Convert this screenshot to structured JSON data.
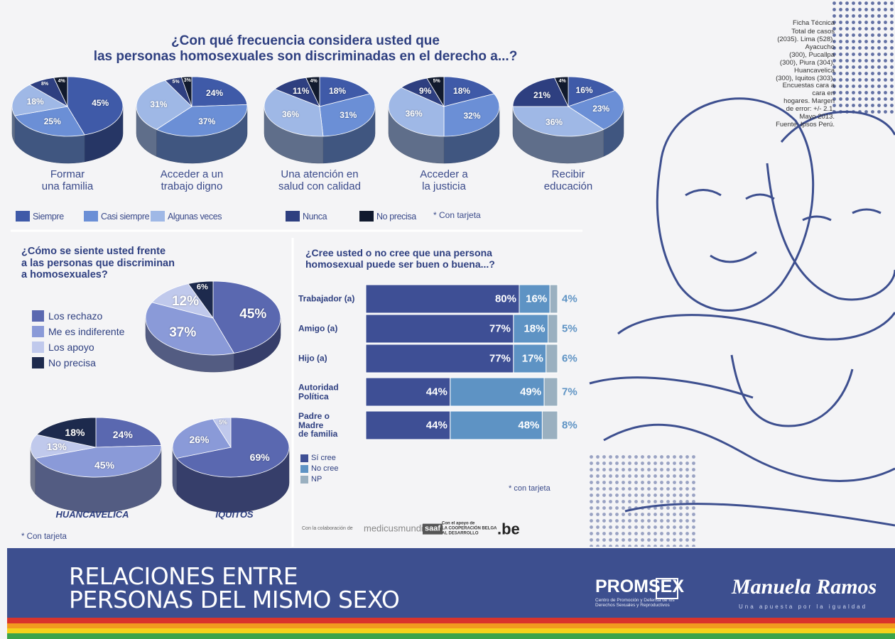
{
  "chart_data": [
    {
      "type": "pie",
      "title": "¿Con qué frecuencia considera usted que\nlas personas homosexuales son discriminadas en el derecho a...?",
      "categories": [
        "Siempre",
        "Casi siempre",
        "Algunas veces",
        "Nunca",
        "No precisa"
      ],
      "colors": [
        "#3f5aa8",
        "#6b8fd6",
        "#9fb8e6",
        "#2e3f80",
        "#111a2e"
      ],
      "pies": [
        {
          "label": "Formar\nuna familia",
          "values": [
            45,
            25,
            18,
            8,
            4
          ],
          "value_labels": [
            "45%",
            "25%",
            "18%",
            "8%",
            "4%"
          ]
        },
        {
          "label": "Acceder a un\ntrabajo digno",
          "values": [
            24,
            37,
            31,
            5,
            3
          ],
          "value_labels": [
            "24%",
            "37%",
            "31%",
            "5%",
            "3%"
          ]
        },
        {
          "label": "Una atención en\nsalud con calidad",
          "values": [
            18,
            31,
            36,
            11,
            4
          ],
          "value_labels": [
            "18%",
            "31%",
            "36%",
            "11%",
            "4%"
          ]
        },
        {
          "label": "Acceder a\nla justicia",
          "values": [
            18,
            32,
            36,
            9,
            5
          ],
          "value_labels": [
            "18%",
            "32%",
            "36%",
            "9%",
            "5%"
          ]
        },
        {
          "label": "Recibir\neducación",
          "values": [
            16,
            23,
            36,
            21,
            4
          ],
          "value_labels": [
            "16%",
            "23%",
            "36%",
            "21%",
            "4%"
          ]
        }
      ],
      "note": "* Con tarjeta"
    },
    {
      "type": "pie",
      "title": "¿Cómo se siente usted frente\na las personas que discriminan\na homosexuales?",
      "categories": [
        "Los rechazo",
        "Me es indiferente",
        "Los apoyo",
        "No precisa"
      ],
      "colors": [
        "#5a68b0",
        "#8a9ad8",
        "#c0c9ec",
        "#1d2a4d"
      ],
      "pies": [
        {
          "values": [
            45,
            37,
            12,
            6
          ],
          "value_labels": [
            "45%",
            "37%",
            "12%",
            "6%"
          ]
        },
        {
          "label": "HUANCAVELICA",
          "values": [
            24,
            45,
            13,
            18
          ],
          "value_labels": [
            "24%",
            "45%",
            "13%",
            "18%"
          ]
        },
        {
          "label": "IQUITOS",
          "values": [
            69,
            26,
            5,
            null
          ],
          "value_labels": [
            "69%",
            "26%",
            "5%",
            null
          ]
        }
      ],
      "note": "* Con tarjeta"
    },
    {
      "type": "bar",
      "orientation": "horizontal",
      "stacked": true,
      "title": "¿Cree usted o no cree que una persona\nhomosexual puede ser buen o buena...?",
      "categories": [
        "Trabajador (a)",
        "Amigo (a)",
        "Hijo (a)",
        "Autoridad\nPolítica",
        "Padre o\nMadre\nde familia"
      ],
      "series": [
        {
          "name": "Sí cree",
          "color": "#3e4f95",
          "values": [
            80,
            77,
            77,
            44,
            44
          ],
          "value_labels": [
            "80%",
            "77%",
            "77%",
            "44%",
            "44%"
          ]
        },
        {
          "name": "No cree",
          "color": "#5e93c4",
          "values": [
            16,
            18,
            17,
            49,
            48
          ],
          "value_labels": [
            "16%",
            "18%",
            "17%",
            "49%",
            "48%"
          ]
        },
        {
          "name": "NP",
          "color": "#9ab0c0",
          "values": [
            4,
            5,
            6,
            7,
            8
          ],
          "value_labels": [
            "4%",
            "5%",
            "6%",
            "7%",
            "8%"
          ]
        }
      ],
      "xlim": [
        0,
        100
      ],
      "note": "* con tarjeta"
    }
  ],
  "ficha_tecnica": {
    "title": "Ficha Técnica",
    "text": "Total de casos (2035). Lima (528), Ayacucho\n(300), Pucallpa (300), Piura (304), Huancavelica\n(300), Iquitos (303). Encuestas cara a cara en\nhogares. Margen de error: +/- 2.1. Mayo 2013.\nFuente: Ipsos Perú."
  },
  "collaborators": [
    "Con la colaboración de",
    "medicusmundi",
    "saaf",
    "Con el apoyo de\nLA COOPERACIÓN BELGA\nAL DESARROLLO",
    ".be"
  ],
  "footer": {
    "title": "RELACIONES ENTRE\nPERSONAS DEL MISMO SEXO",
    "promsex": "PROMSEX",
    "promsex_sub": "Centro de Promoción y Defensa de los\nDerechos Sexuales y Reproductivos",
    "manuela": "Manuela Ramos",
    "manuela_sub": "Una apuesta por la igualdad"
  }
}
